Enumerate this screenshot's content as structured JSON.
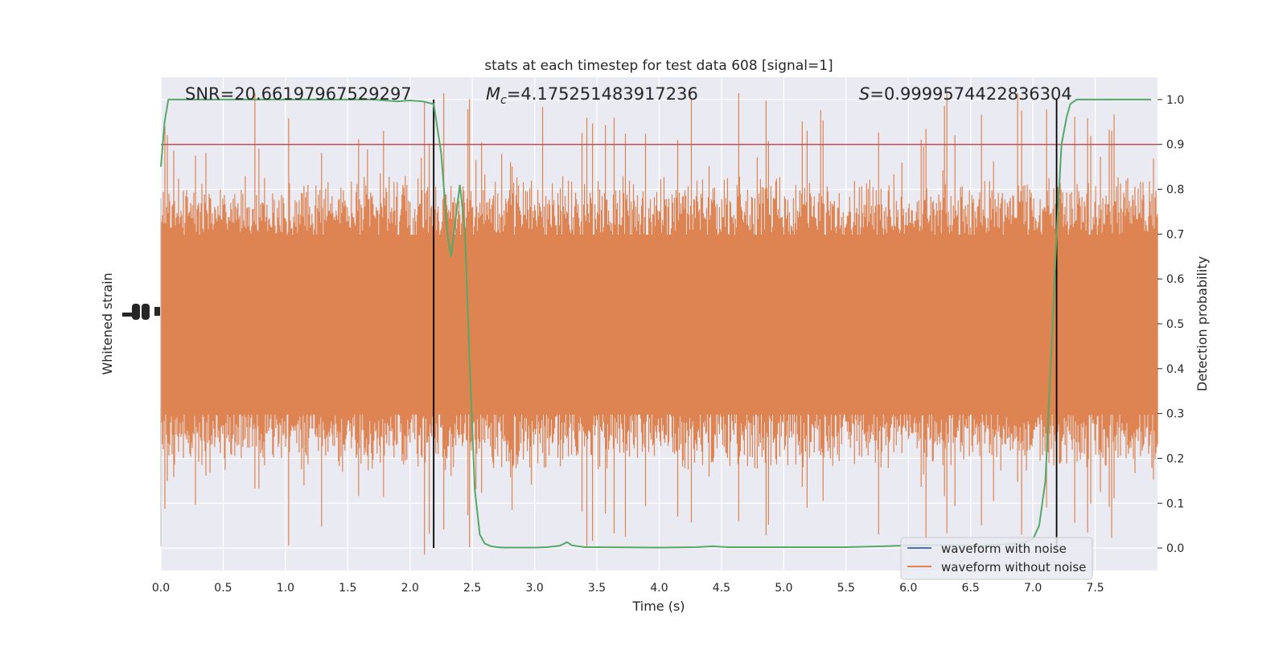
{
  "chart_data": {
    "type": "line",
    "title": "stats at each timestep for test data 608 [signal=1]",
    "xlabel": "Time (s)",
    "ylabel_left": "Whitened strain",
    "ylabel_right": "Detection probability",
    "xlim": [
      0.0,
      8.0
    ],
    "x_ticks": [
      "0.0",
      "0.5",
      "1.0",
      "1.5",
      "2.0",
      "2.5",
      "3.0",
      "3.5",
      "4.0",
      "4.5",
      "5.0",
      "5.5",
      "6.0",
      "6.5",
      "7.0",
      "7.5"
    ],
    "y_right_lim": [
      -0.05,
      1.05
    ],
    "y_right_ticks": [
      "0.0",
      "0.1",
      "0.2",
      "0.3",
      "0.4",
      "0.5",
      "0.6",
      "0.7",
      "0.8",
      "0.9",
      "1.0"
    ],
    "grid": true,
    "legend_position": "lower-right",
    "annotations": {
      "snr_prefix": "SNR=",
      "snr_value": "20.66197967529297",
      "mc_symbol": "M",
      "mc_subscript": "c",
      "mc_value": "=4.175251483917236",
      "s_symbol": "S",
      "s_value": "=0.9999574422836304"
    },
    "threshold": 0.9,
    "vertical_lines_x": [
      2.19,
      7.19
    ],
    "series": [
      {
        "name": "waveform with noise",
        "color": "#4c72b0",
        "axis": "left",
        "x": [
          0.0,
          8.0
        ],
        "y": [
          0.0,
          0.0
        ]
      },
      {
        "name": "waveform without noise",
        "color": "#dd8452",
        "axis": "left"
      },
      {
        "color": "#55a868",
        "axis": "right",
        "x": [
          0.0,
          0.03,
          0.06,
          0.1,
          0.3,
          0.6,
          1.0,
          1.5,
          1.7,
          1.9,
          2.0,
          2.1,
          2.19,
          2.25,
          2.3,
          2.33,
          2.36,
          2.4,
          2.44,
          2.48,
          2.52,
          2.56,
          2.6,
          2.65,
          2.7,
          2.75,
          2.8,
          3.0,
          3.1,
          3.2,
          3.26,
          3.3,
          3.4,
          3.5,
          4.0,
          4.3,
          4.43,
          4.55,
          5.0,
          5.5,
          5.8,
          6.0,
          6.3,
          6.6,
          6.9,
          7.0,
          7.05,
          7.1,
          7.15,
          7.19,
          7.23,
          7.27,
          7.3,
          7.35,
          7.5,
          7.95
        ],
        "y": [
          0.85,
          0.95,
          1.0,
          1.0,
          1.0,
          1.0,
          1.0,
          1.0,
          1.0,
          0.996,
          0.998,
          0.996,
          0.99,
          0.88,
          0.7,
          0.65,
          0.72,
          0.81,
          0.71,
          0.4,
          0.13,
          0.03,
          0.01,
          0.004,
          0.002,
          0.001,
          0.001,
          0.001,
          0.002,
          0.005,
          0.013,
          0.006,
          0.002,
          0.002,
          0.001,
          0.002,
          0.004,
          0.002,
          0.002,
          0.002,
          0.004,
          0.006,
          0.007,
          0.006,
          0.01,
          0.02,
          0.05,
          0.15,
          0.45,
          0.7,
          0.9,
          0.96,
          0.99,
          1.0,
          1.0,
          1.0
        ]
      }
    ]
  }
}
